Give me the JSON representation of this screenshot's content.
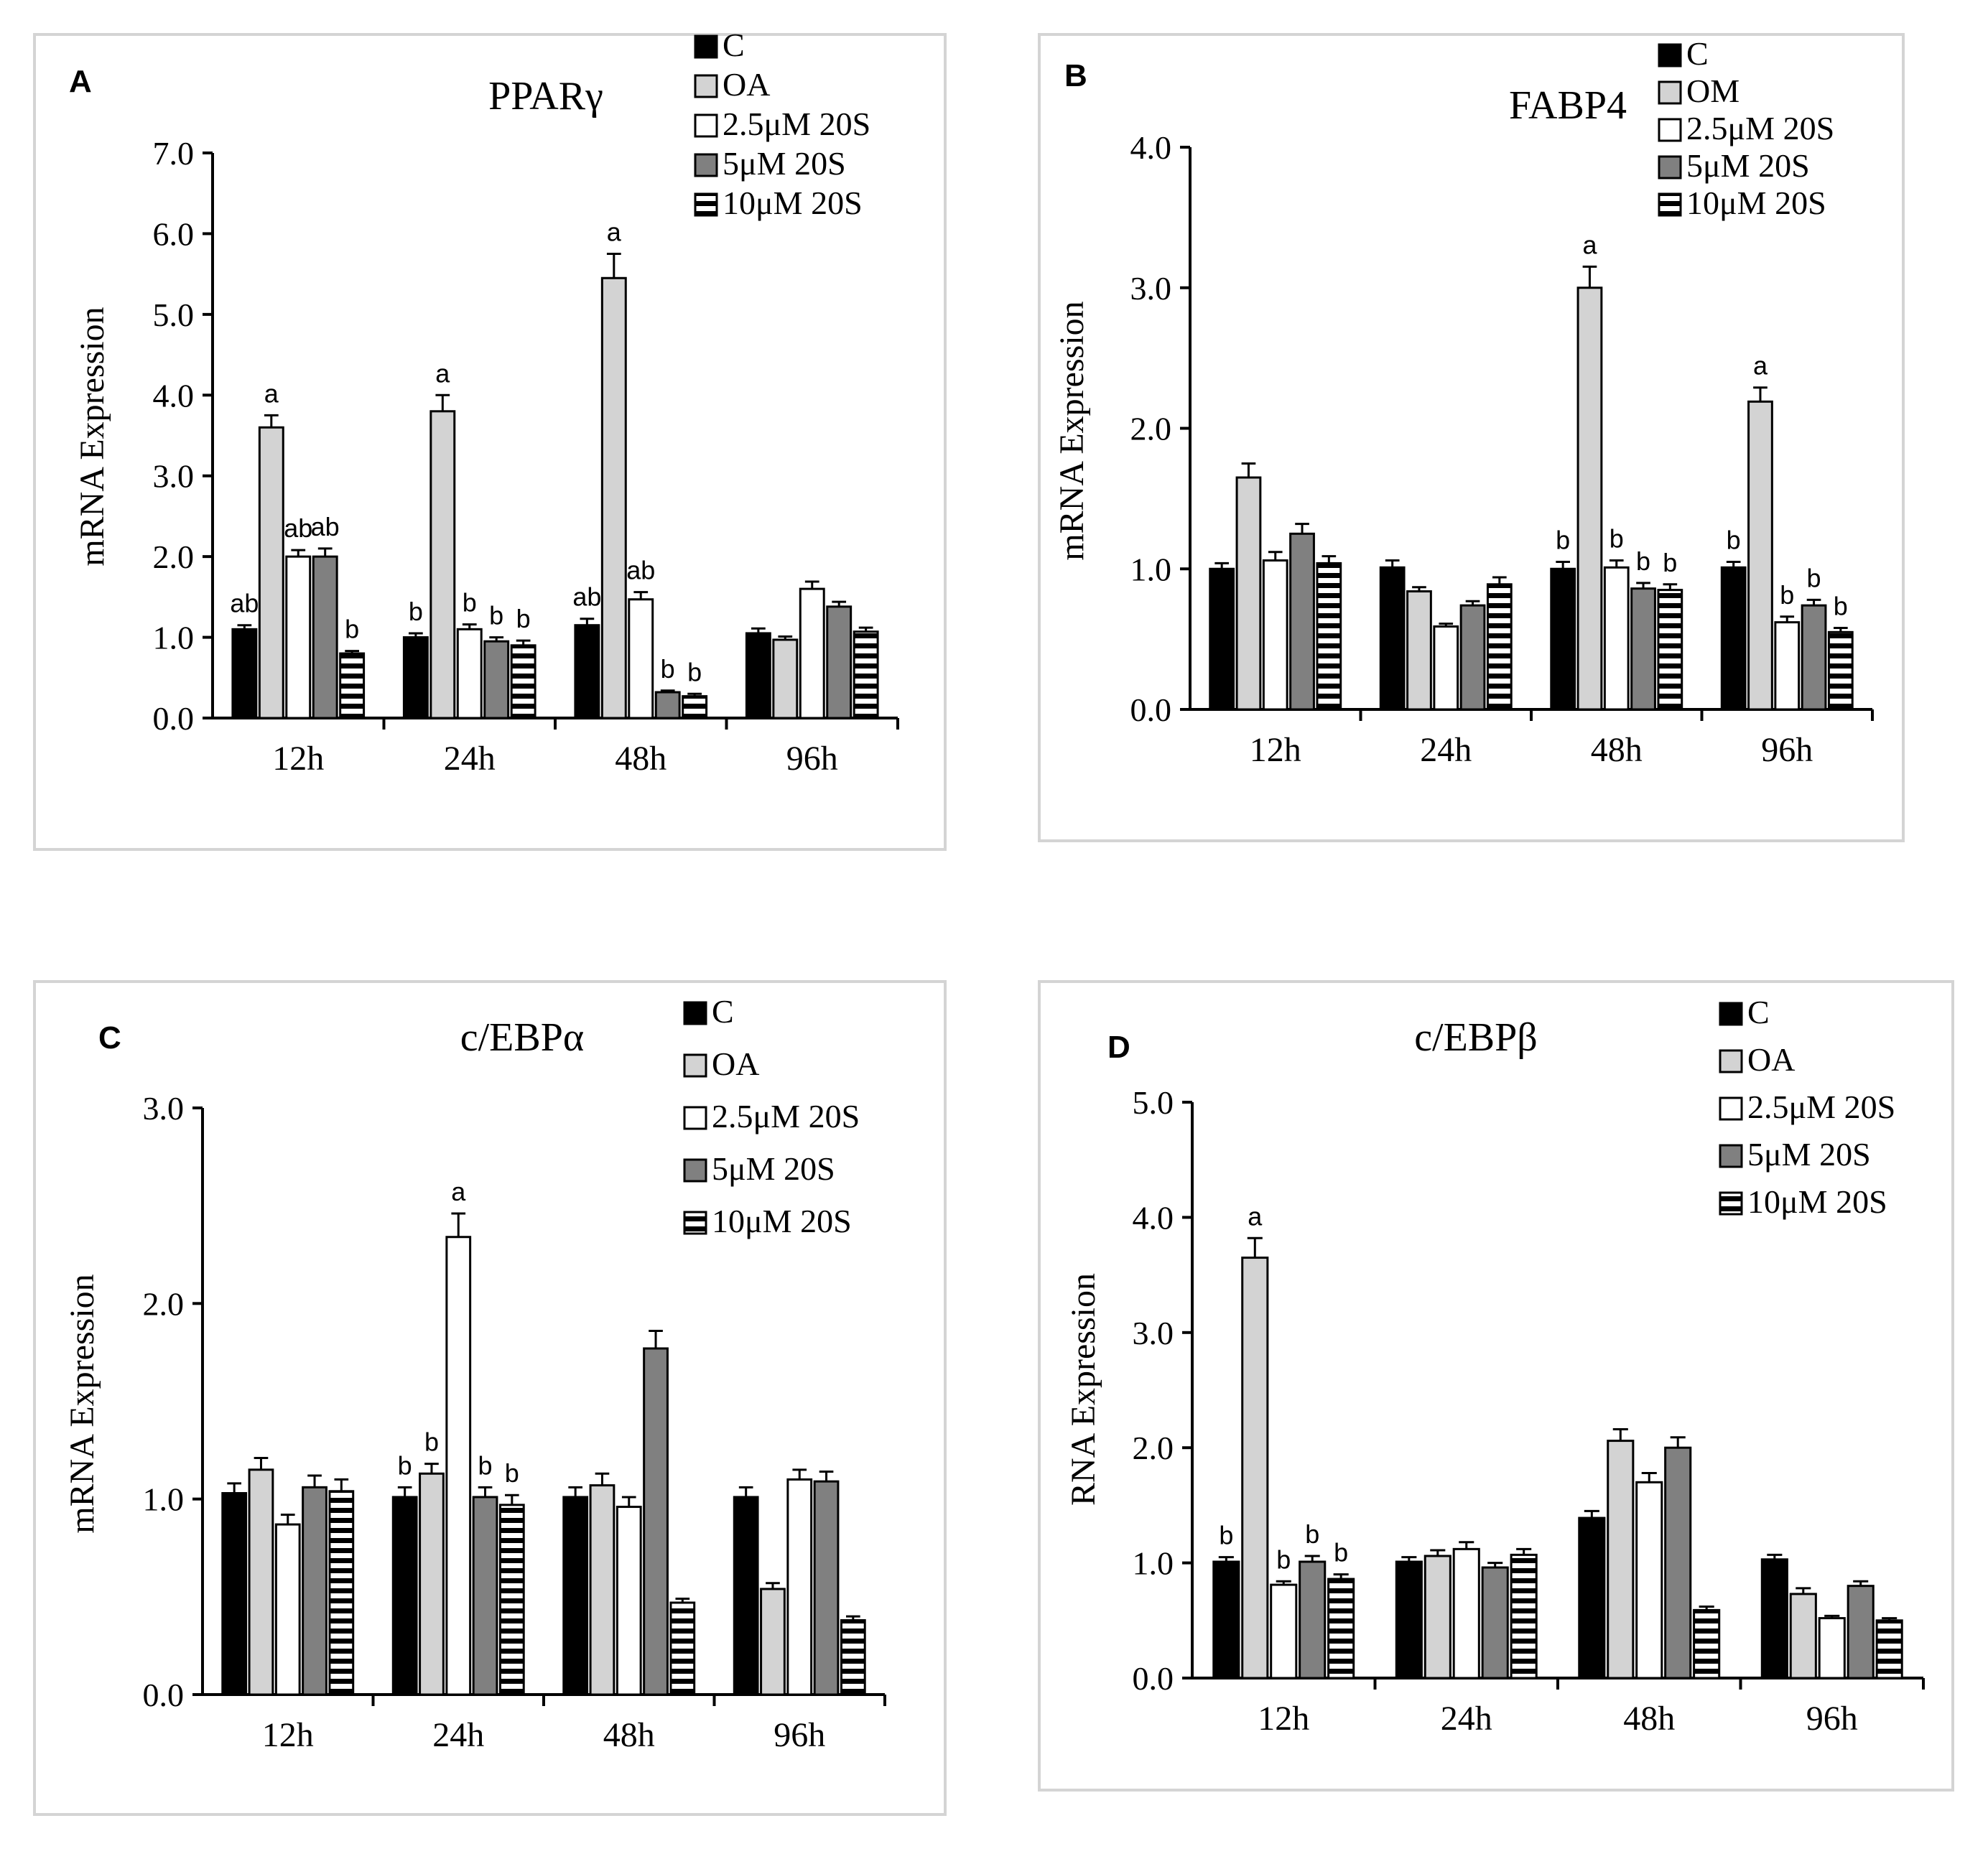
{
  "series_styles": {
    "C": {
      "fill": "#000000",
      "pattern": "solid"
    },
    "OA": {
      "fill": "#d3d3d3",
      "pattern": "solid"
    },
    "2.5uM": {
      "fill": "#ffffff",
      "pattern": "solid"
    },
    "5uM": {
      "fill": "#808080",
      "pattern": "solid"
    },
    "10uM": {
      "fill": "#ffffff",
      "pattern": "horizontal-stripes"
    }
  },
  "chart_data": [
    {
      "panel": "A",
      "type": "bar",
      "title": "PPARγ",
      "ylabel": "mRNA Expression",
      "ylim": [
        0,
        7
      ],
      "yticks": [
        "0.0",
        "1.0",
        "2.0",
        "3.0",
        "4.0",
        "5.0",
        "6.0",
        "7.0"
      ],
      "categories": [
        "12h",
        "24h",
        "48h",
        "96h"
      ],
      "legend": [
        "C",
        "OA",
        "2.5μM 20S",
        "5μM 20S",
        "10μM 20S"
      ],
      "series": [
        {
          "name": "C",
          "values": [
            1.1,
            1.0,
            1.15,
            1.05
          ],
          "errors": [
            0.05,
            0.05,
            0.08,
            0.06
          ],
          "labels": [
            "ab",
            "b",
            "ab",
            ""
          ]
        },
        {
          "name": "OA",
          "values": [
            3.6,
            3.8,
            5.45,
            0.97
          ],
          "errors": [
            0.15,
            0.2,
            0.3,
            0.04
          ],
          "labels": [
            "a",
            "a",
            "a",
            ""
          ]
        },
        {
          "name": "2.5μM 20S",
          "values": [
            2.0,
            1.1,
            1.47,
            1.6
          ],
          "errors": [
            0.08,
            0.06,
            0.09,
            0.09
          ],
          "labels": [
            "ab",
            "b",
            "ab",
            ""
          ]
        },
        {
          "name": "5μM 20S",
          "values": [
            2.0,
            0.95,
            0.32,
            1.38
          ],
          "errors": [
            0.1,
            0.05,
            0.02,
            0.06
          ],
          "labels": [
            "ab",
            "b",
            "b",
            ""
          ]
        },
        {
          "name": "10μM 20S",
          "values": [
            0.8,
            0.9,
            0.27,
            1.07
          ],
          "errors": [
            0.03,
            0.06,
            0.03,
            0.05
          ],
          "labels": [
            "b",
            "b",
            "b",
            ""
          ]
        }
      ]
    },
    {
      "panel": "B",
      "type": "bar",
      "title": "FABP4",
      "ylabel": "mRNA Expression",
      "ylim": [
        0,
        4
      ],
      "yticks": [
        "0.0",
        "1.0",
        "2.0",
        "3.0",
        "4.0"
      ],
      "categories": [
        "12h",
        "24h",
        "48h",
        "96h"
      ],
      "legend": [
        "C",
        "OM",
        "2.5μM 20S",
        "5μM 20S",
        "10μM 20S"
      ],
      "series": [
        {
          "name": "C",
          "values": [
            1.0,
            1.01,
            1.0,
            1.01
          ],
          "errors": [
            0.04,
            0.05,
            0.05,
            0.04
          ],
          "labels": [
            "",
            "",
            "b",
            "b"
          ]
        },
        {
          "name": "OM",
          "values": [
            1.65,
            0.84,
            3.0,
            2.19
          ],
          "errors": [
            0.1,
            0.03,
            0.15,
            0.1
          ],
          "labels": [
            "",
            "",
            "a",
            "a"
          ]
        },
        {
          "name": "2.5μM 20S",
          "values": [
            1.06,
            0.59,
            1.01,
            0.62
          ],
          "errors": [
            0.06,
            0.02,
            0.05,
            0.04
          ],
          "labels": [
            "",
            "",
            "b",
            "b"
          ]
        },
        {
          "name": "5μM 20S",
          "values": [
            1.25,
            0.74,
            0.86,
            0.74
          ],
          "errors": [
            0.07,
            0.03,
            0.04,
            0.04
          ],
          "labels": [
            "",
            "",
            "b",
            "b"
          ]
        },
        {
          "name": "10μM 20S",
          "values": [
            1.04,
            0.89,
            0.85,
            0.55
          ],
          "errors": [
            0.05,
            0.05,
            0.04,
            0.03
          ],
          "labels": [
            "",
            "",
            "b",
            "b"
          ]
        }
      ]
    },
    {
      "panel": "C",
      "type": "bar",
      "title": "c/EBPα",
      "ylabel": "mRNA Expression",
      "ylim": [
        0,
        3
      ],
      "yticks": [
        "0.0",
        "1.0",
        "2.0",
        "3.0"
      ],
      "categories": [
        "12h",
        "24h",
        "48h",
        "96h"
      ],
      "legend": [
        "C",
        "OA",
        "2.5μM 20S",
        "5μM 20S",
        "10μM 20S"
      ],
      "series": [
        {
          "name": "C",
          "values": [
            1.03,
            1.01,
            1.01,
            1.01
          ],
          "errors": [
            0.05,
            0.05,
            0.05,
            0.05
          ],
          "labels": [
            "",
            "b",
            "",
            ""
          ]
        },
        {
          "name": "OA",
          "values": [
            1.15,
            1.13,
            1.07,
            0.54
          ],
          "errors": [
            0.06,
            0.05,
            0.06,
            0.03
          ],
          "labels": [
            "",
            "b",
            "",
            ""
          ]
        },
        {
          "name": "2.5μM 20S",
          "values": [
            0.87,
            2.34,
            0.96,
            1.1
          ],
          "errors": [
            0.05,
            0.12,
            0.05,
            0.05
          ],
          "labels": [
            "",
            "a",
            "",
            ""
          ]
        },
        {
          "name": "5μM 20S",
          "values": [
            1.06,
            1.01,
            1.77,
            1.09
          ],
          "errors": [
            0.06,
            0.05,
            0.09,
            0.05
          ],
          "labels": [
            "",
            "b",
            "",
            ""
          ]
        },
        {
          "name": "10μM 20S",
          "values": [
            1.04,
            0.97,
            0.47,
            0.38
          ],
          "errors": [
            0.06,
            0.05,
            0.02,
            0.02
          ],
          "labels": [
            "",
            "b",
            "",
            ""
          ]
        }
      ]
    },
    {
      "panel": "D",
      "type": "bar",
      "title": "c/EBPβ",
      "ylabel": "RNA Expression",
      "ylim": [
        0,
        5
      ],
      "yticks": [
        "0.0",
        "1.0",
        "2.0",
        "3.0",
        "4.0",
        "5.0"
      ],
      "categories": [
        "12h",
        "24h",
        "48h",
        "96h"
      ],
      "legend": [
        "C",
        "OA",
        "2.5μM 20S",
        "5μM 20S",
        "10μM 20S"
      ],
      "series": [
        {
          "name": "C",
          "values": [
            1.01,
            1.01,
            1.39,
            1.03
          ],
          "errors": [
            0.04,
            0.04,
            0.06,
            0.04
          ],
          "labels": [
            "b",
            "",
            "",
            ""
          ]
        },
        {
          "name": "OA",
          "values": [
            3.65,
            1.06,
            2.06,
            0.73
          ],
          "errors": [
            0.17,
            0.05,
            0.1,
            0.05
          ],
          "labels": [
            "a",
            "",
            "",
            ""
          ]
        },
        {
          "name": "2.5μM 20S",
          "values": [
            0.81,
            1.12,
            1.7,
            0.52
          ],
          "errors": [
            0.03,
            0.06,
            0.08,
            0.02
          ],
          "labels": [
            "b",
            "",
            "",
            ""
          ]
        },
        {
          "name": "5μM 20S",
          "values": [
            1.01,
            0.96,
            2.0,
            0.8
          ],
          "errors": [
            0.05,
            0.04,
            0.09,
            0.04
          ],
          "labels": [
            "b",
            "",
            "",
            ""
          ]
        },
        {
          "name": "10μM 20S",
          "values": [
            0.86,
            1.07,
            0.59,
            0.5
          ],
          "errors": [
            0.04,
            0.05,
            0.03,
            0.02
          ],
          "labels": [
            "b",
            "",
            "",
            ""
          ]
        }
      ]
    }
  ]
}
